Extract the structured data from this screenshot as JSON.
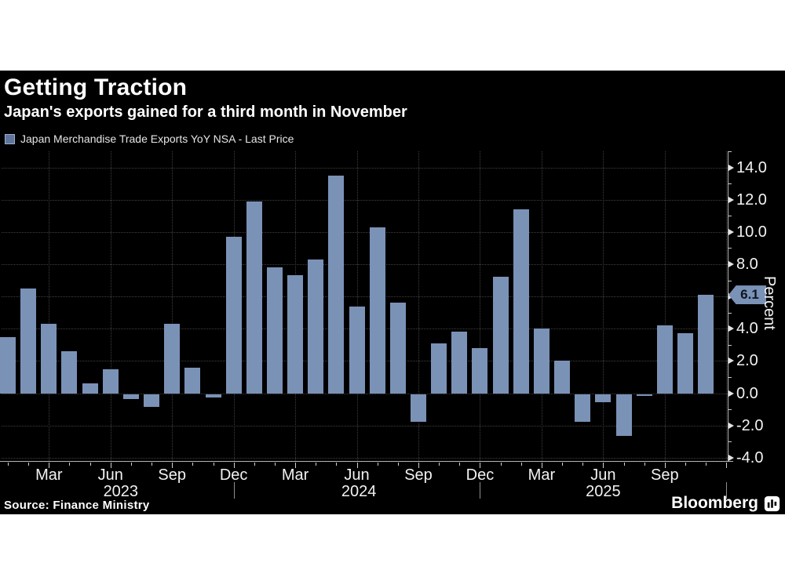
{
  "header": {
    "title": "Getting Traction",
    "subtitle": "Japan's exports gained for a third month in November"
  },
  "legend": {
    "label": "Japan Merchandise Trade Exports YoY NSA - Last Price"
  },
  "chart_data": {
    "type": "bar",
    "title": "Getting Traction",
    "series_name": "Japan Merchandise Trade Exports YoY NSA - Last Price",
    "ylabel": "Percent",
    "ylim": [
      -4.2,
      15.0
    ],
    "grid": true,
    "legend_position": "top-left",
    "x": [
      "Jan 2023",
      "Feb 2023",
      "Mar 2023",
      "Apr 2023",
      "May 2023",
      "Jun 2023",
      "Jul 2023",
      "Aug 2023",
      "Sep 2023",
      "Oct 2023",
      "Nov 2023",
      "Dec 2023",
      "Jan 2024",
      "Feb 2024",
      "Mar 2024",
      "Apr 2024",
      "May 2024",
      "Jun 2024",
      "Jul 2024",
      "Aug 2024",
      "Sep 2024",
      "Oct 2024",
      "Nov 2024",
      "Dec 2024",
      "Jan 2025",
      "Feb 2025",
      "Mar 2025",
      "Apr 2025",
      "May 2025",
      "Jun 2025",
      "Jul 2025",
      "Aug 2025",
      "Sep 2025",
      "Oct 2025",
      "Nov 2025"
    ],
    "values": [
      3.5,
      6.5,
      4.3,
      2.6,
      0.6,
      1.5,
      -0.3,
      -0.8,
      4.3,
      1.6,
      -0.2,
      9.7,
      11.9,
      7.8,
      7.3,
      8.3,
      13.5,
      5.4,
      10.3,
      5.6,
      -1.7,
      3.1,
      3.8,
      2.8,
      7.2,
      11.4,
      4.0,
      2.0,
      -1.7,
      -0.5,
      -2.6,
      -0.1,
      4.2,
      3.7,
      6.1
    ],
    "last_price": {
      "label": "6.1",
      "value": 6.1
    },
    "yticks": [
      {
        "value": 14,
        "label": "14.0"
      },
      {
        "value": 12,
        "label": "12.0"
      },
      {
        "value": 10,
        "label": "10.0"
      },
      {
        "value": 8,
        "label": "8.0"
      },
      {
        "value": 6,
        "label": "6.0",
        "hidden_by_badge": true
      },
      {
        "value": 4,
        "label": "4.0"
      },
      {
        "value": 2,
        "label": "2.0"
      },
      {
        "value": 0,
        "label": "0.0"
      },
      {
        "value": -2,
        "label": "-2.0"
      },
      {
        "value": -4,
        "label": "-4.0"
      }
    ],
    "xticks": [
      {
        "label": "Mar",
        "i": 2
      },
      {
        "label": "Jun",
        "i": 5
      },
      {
        "label": "Sep",
        "i": 8
      },
      {
        "label": "Dec",
        "i": 11
      },
      {
        "label": "Mar",
        "i": 14
      },
      {
        "label": "Jun",
        "i": 17
      },
      {
        "label": "Sep",
        "i": 20
      },
      {
        "label": "Dec",
        "i": 23
      },
      {
        "label": "Mar",
        "i": 26
      },
      {
        "label": "Jun",
        "i": 29
      },
      {
        "label": "Sep",
        "i": 32
      }
    ],
    "vgrid_indices": [
      2,
      5,
      8,
      11,
      14,
      17,
      20,
      23,
      26,
      29,
      32,
      35
    ],
    "year_labels": [
      {
        "label": "2023",
        "i": 5.5
      },
      {
        "label": "2024",
        "i": 17.1
      },
      {
        "label": "2025",
        "i": 29.0
      }
    ],
    "year_divider_indices": [
      11,
      23,
      35
    ]
  },
  "footer": {
    "source": "Source: Finance Ministry",
    "brand": "Bloomberg"
  },
  "colors": {
    "page_background": "#ffffff",
    "background": "#000000",
    "bar": "#7b92b7",
    "legend_marker": "#5f759c",
    "legend_marker_border": "#9db0d0",
    "grid": "#3f3f3f",
    "axis": "#b5b5b5",
    "text": "#ffffff",
    "badge_bg": "#7b92b7",
    "badge_text": "#0d1420"
  }
}
